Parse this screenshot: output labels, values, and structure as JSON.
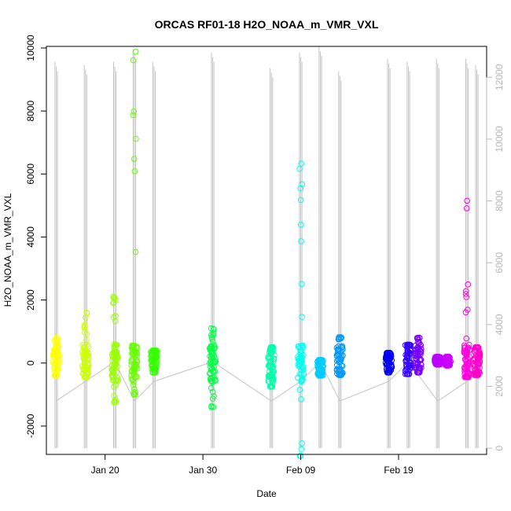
{
  "chart_data": {
    "type": "scatter",
    "title": "ORCAS RF01-18 H2O_NOAA_m_VMR_VXL",
    "xlabel": "Date",
    "ylabel": "H2O_NOAA_m_VMR_VXL",
    "x_ticks": [
      "Jan 20",
      "Jan 30",
      "Feb 09",
      "Feb 19"
    ],
    "x_tick_dates": [
      "2016-01-20",
      "2016-01-30",
      "2016-02-09",
      "2016-02-19"
    ],
    "xlim": [
      "2016-01-14",
      "2016-02-28"
    ],
    "ylim": [
      -2900,
      10050
    ],
    "y_ticks": [
      -2000,
      0,
      2000,
      4000,
      6000,
      8000,
      10000
    ],
    "y2lim": [
      -200,
      13000
    ],
    "y2_ticks": [
      0,
      2000,
      4000,
      6000,
      8000,
      10000,
      12000
    ],
    "grid": false,
    "colors": {
      "frame": "#000000",
      "secondary_line": "#bebebe",
      "secondary_axis": "#b8b8b8"
    },
    "flights": [
      {
        "date": "2016-01-15",
        "color": "#ffff00",
        "y_min": -400,
        "y_max": 800
      },
      {
        "date": "2016-01-18",
        "color": "#ccff00",
        "y_min": -450,
        "y_max": 1600
      },
      {
        "date": "2016-01-21",
        "color": "#99ff00",
        "y_min": -1250,
        "y_max": 2100
      },
      {
        "date": "2016-01-23",
        "color": "#66ff00",
        "y_min": -1000,
        "y_max": 9880
      },
      {
        "date": "2016-01-25",
        "color": "#33ff00",
        "y_min": -300,
        "y_max": 400
      },
      {
        "date": "2016-01-31",
        "color": "#00ff44",
        "y_min": -1400,
        "y_max": 1100
      },
      {
        "date": "2016-02-06",
        "color": "#00ffaa",
        "y_min": -750,
        "y_max": 500
      },
      {
        "date": "2016-02-09",
        "color": "#00ffee",
        "y_min": -2950,
        "y_max": 6330
      },
      {
        "date": "2016-02-11",
        "color": "#00ccff",
        "y_min": -400,
        "y_max": 100
      },
      {
        "date": "2016-02-13",
        "color": "#0099ff",
        "y_min": -380,
        "y_max": 820
      },
      {
        "date": "2016-02-18",
        "color": "#0000ee",
        "y_min": -300,
        "y_max": 320
      },
      {
        "date": "2016-02-20",
        "color": "#3300ff",
        "y_min": -350,
        "y_max": 580
      },
      {
        "date": "2016-02-21",
        "color": "#7700ff",
        "y_min": -300,
        "y_max": 800
      },
      {
        "date": "2016-02-23",
        "color": "#bb00ff",
        "y_min": -50,
        "y_max": 200
      },
      {
        "date": "2016-02-24",
        "color": "#cc00ff",
        "y_min": -80,
        "y_max": 200
      },
      {
        "date": "2016-02-26",
        "color": "#ff00dd",
        "y_min": -450,
        "y_max": 5150
      },
      {
        "date": "2016-02-27",
        "color": "#ff00cc",
        "y_min": -380,
        "y_max": 500
      }
    ],
    "secondary_series": {
      "description_axis": "right",
      "traces": [
        {
          "date": "2016-01-15",
          "y2_min": 0,
          "y2_max": 12500
        },
        {
          "date": "2016-01-18",
          "y2_min": 0,
          "y2_max": 12400
        },
        {
          "date": "2016-01-21",
          "y2_min": 0,
          "y2_max": 12500
        },
        {
          "date": "2016-01-23",
          "y2_min": 0,
          "y2_max": 12900
        },
        {
          "date": "2016-01-25",
          "y2_min": 0,
          "y2_max": 12500
        },
        {
          "date": "2016-01-31",
          "y2_min": 0,
          "y2_max": 12800
        },
        {
          "date": "2016-02-06",
          "y2_min": 0,
          "y2_max": 12300
        },
        {
          "date": "2016-02-09",
          "y2_min": 0,
          "y2_max": 12800
        },
        {
          "date": "2016-02-11",
          "y2_min": 0,
          "y2_max": 13000
        },
        {
          "date": "2016-02-13",
          "y2_min": 0,
          "y2_max": 12200
        },
        {
          "date": "2016-02-18",
          "y2_min": 0,
          "y2_max": 12600
        },
        {
          "date": "2016-02-20",
          "y2_min": 0,
          "y2_max": 12500
        },
        {
          "date": "2016-02-23",
          "y2_min": 0,
          "y2_max": 12600
        },
        {
          "date": "2016-02-26",
          "y2_min": 0,
          "y2_max": 12600
        },
        {
          "date": "2016-02-27",
          "y2_min": 0,
          "y2_max": 12400
        }
      ]
    }
  }
}
